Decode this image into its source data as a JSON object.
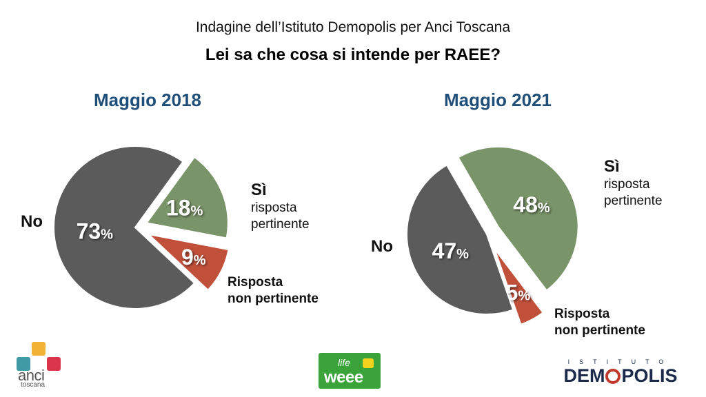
{
  "header": {
    "subtitle": "Indagine dell’Istituto Demopolis per Anci Toscana",
    "question": "Lei sa che cosa si intende per RAEE?"
  },
  "labels": {
    "si": "Sì",
    "si_sub_line1": "risposta",
    "si_sub_line2": "pertinente",
    "no": "No",
    "np_line1": "Risposta",
    "np_line2": "non pertinente"
  },
  "logos": {
    "anci": "anci",
    "anci_sub": "toscana",
    "weee_top": "life",
    "weee_bottom": "weee",
    "demopolis_top": "ISTITUTO",
    "demopolis_left": "DEM",
    "demopolis_right": "POLIS"
  },
  "colors": {
    "no": "#5b5b5b",
    "si": "#7a9469",
    "np": "#c0503a",
    "year": "#1f4e79"
  },
  "chart_data": [
    {
      "type": "pie",
      "title": "Maggio 2018",
      "slices": [
        {
          "label": "No",
          "value": 73,
          "display": "73"
        },
        {
          "label": "Sì risposta pertinente",
          "value": 18,
          "display": "18"
        },
        {
          "label": "Risposta non pertinente",
          "value": 9,
          "display": "9"
        }
      ],
      "unit": "%"
    },
    {
      "type": "pie",
      "title": "Maggio 2021",
      "slices": [
        {
          "label": "No",
          "value": 47,
          "display": "47"
        },
        {
          "label": "Sì risposta pertinente",
          "value": 48,
          "display": "48"
        },
        {
          "label": "Risposta non pertinente",
          "value": 5,
          "display": "5"
        }
      ],
      "unit": "%"
    }
  ]
}
